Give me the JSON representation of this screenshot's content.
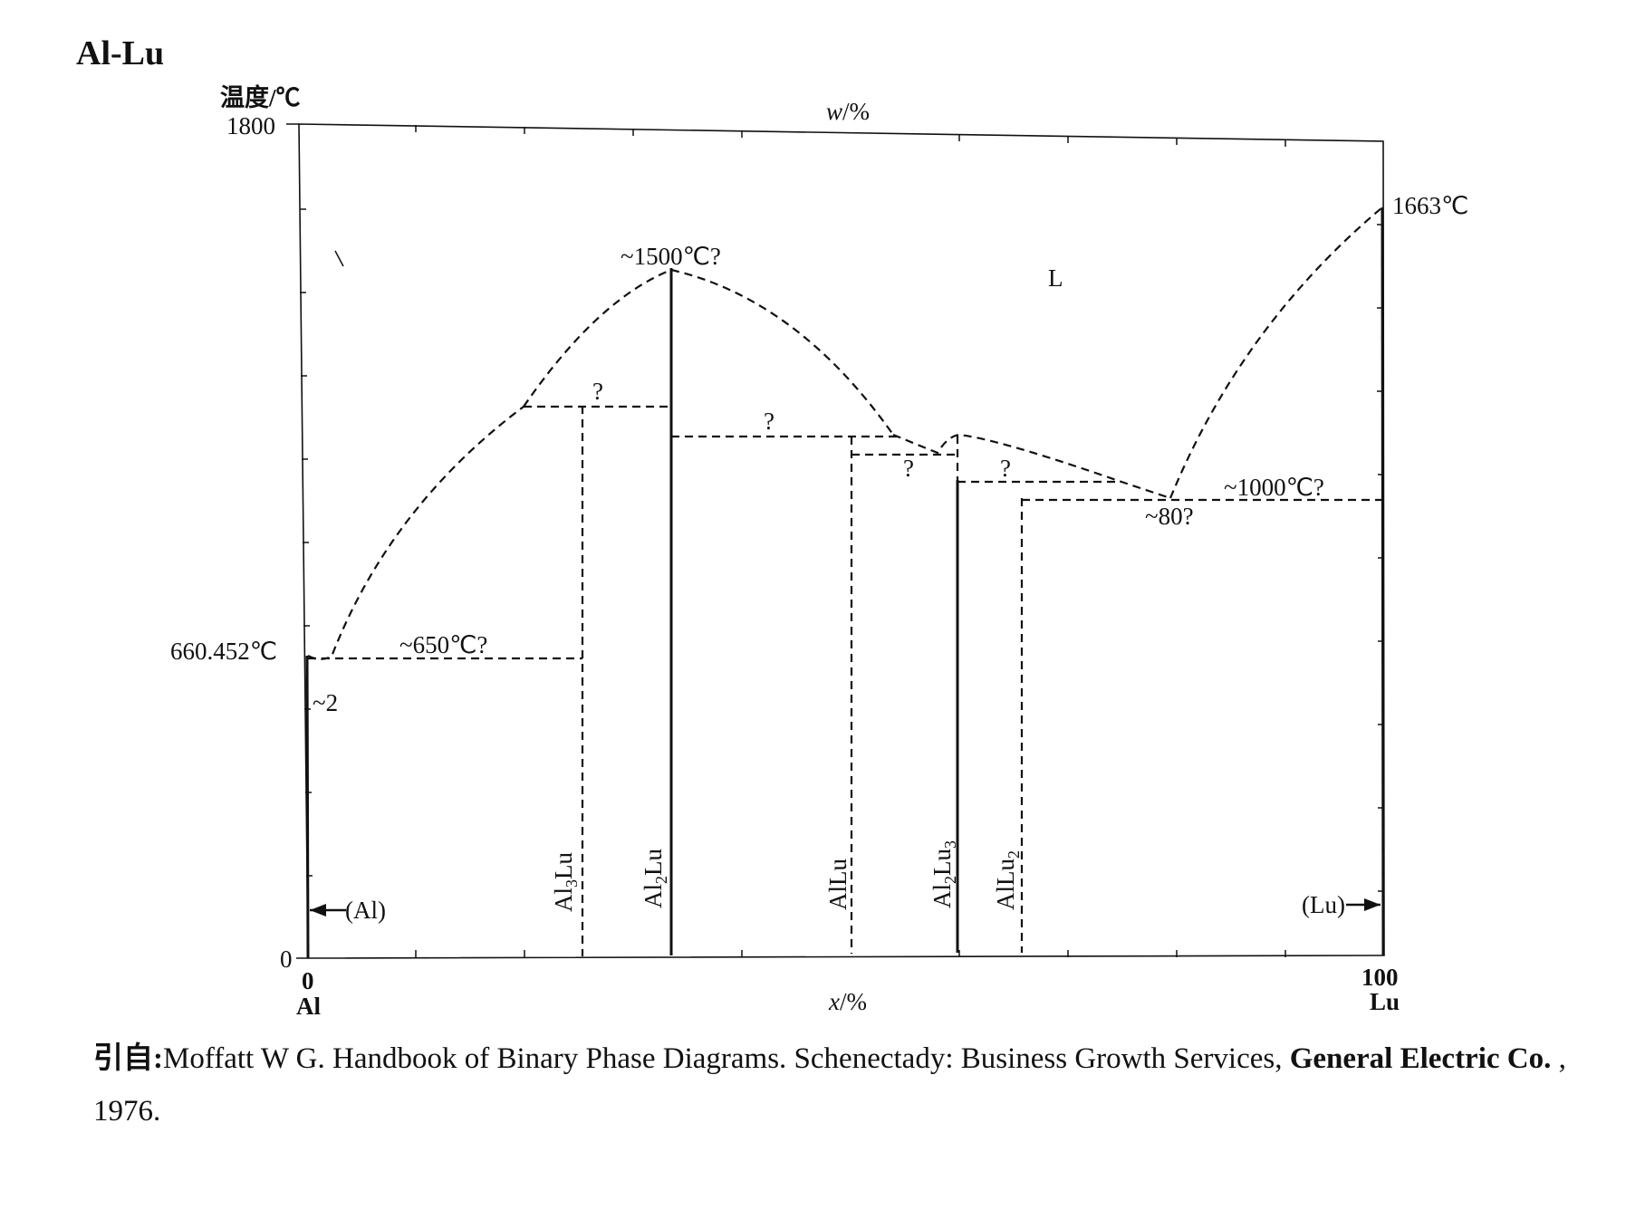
{
  "title": "Al-Lu",
  "axes": {
    "y_label": "温度/℃",
    "y_ticks": [
      "1800",
      "0"
    ],
    "top_label_w": "w",
    "top_label_unit": "/%",
    "x_label_x": "x",
    "x_label_unit": "/%",
    "x_left_value": "0",
    "x_left_element": "Al",
    "x_right_value": "100",
    "x_right_element": "Lu"
  },
  "annotations": {
    "al_melting": "660.452℃",
    "lu_melting": "1663℃",
    "peak": "~1500℃?",
    "liquid": "L",
    "eutectic_al": "~650℃?",
    "eutectic_al_comp": "~2",
    "eutectic_lu": "~1000℃?",
    "eutectic_lu_comp": "~80?",
    "q1": "?",
    "q2": "?",
    "q3": "?",
    "q4": "?",
    "al_solid": "(Al)",
    "lu_solid": "(Lu)"
  },
  "compounds": [
    {
      "base": "Al",
      "sub1": "3",
      "mid": "Lu",
      "sub2": ""
    },
    {
      "base": "Al",
      "sub1": "2",
      "mid": "Lu",
      "sub2": ""
    },
    {
      "base": "AlLu",
      "sub1": "",
      "mid": "",
      "sub2": ""
    },
    {
      "base": "Al",
      "sub1": "2",
      "mid": "Lu",
      "sub2": "3"
    },
    {
      "base": "AlLu",
      "sub1": "",
      "mid": "",
      "sub2": "2"
    }
  ],
  "source": {
    "head": "引自",
    "sep": ":",
    "text_a": "Moffatt W G.  Handbook of Binary Phase Diagrams.  Schenectady: Business Growth Services, ",
    "text_b": "General Electric Co.",
    "text_c": " , 1976."
  }
}
